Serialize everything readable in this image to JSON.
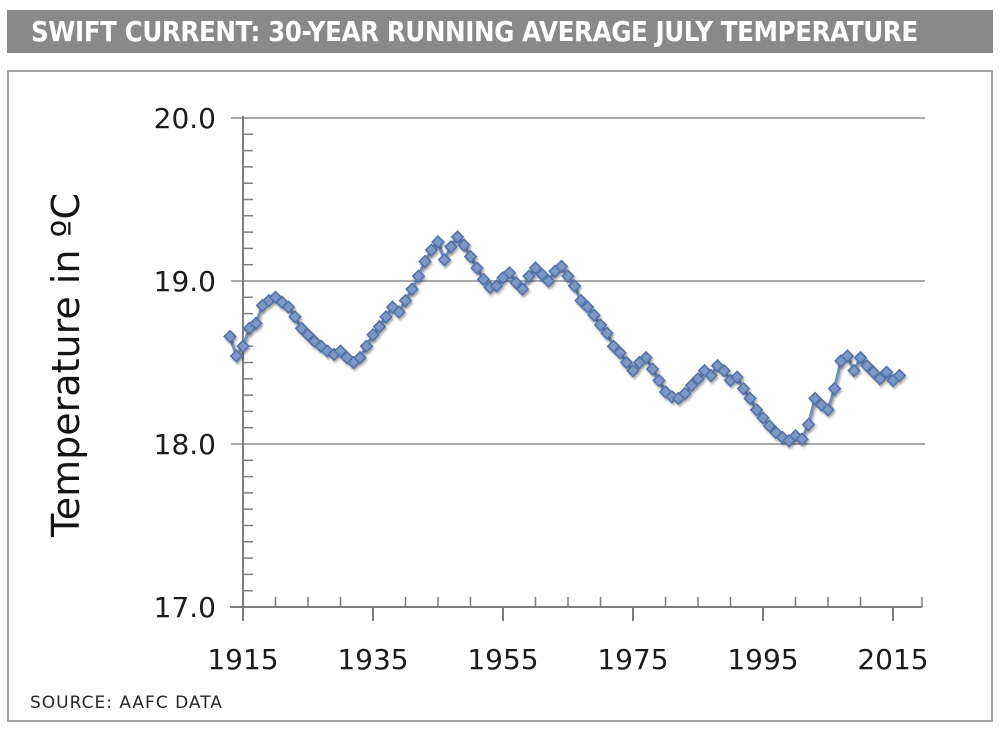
{
  "title_bar": {
    "title": "SWIFT CURRENT: 30-YEAR RUNNING AVERAGE JULY TEMPERATURE"
  },
  "source_label": "SOURCE: AAFC DATA",
  "chart_data": {
    "type": "scatter",
    "title": "SWIFT CURRENT: 30-YEAR RUNNING AVERAGE JULY TEMPERATURE",
    "xlabel": "",
    "ylabel": "Temperature in ºC",
    "ylim": [
      17.0,
      20.0
    ],
    "xlim": [
      1913,
      2020
    ],
    "grid": "horizontal",
    "legend_position": "none",
    "marker": "diamond",
    "y_tick_labels": [
      "20.0",
      "19.0",
      "18.0",
      "17.0"
    ],
    "y_tick_values": [
      20.0,
      19.0,
      18.0,
      17.0
    ],
    "x_tick_labels": [
      "1915",
      "1935",
      "1955",
      "1975",
      "1995",
      "2015"
    ],
    "x_tick_years": [
      1915,
      1935,
      1955,
      1975,
      1995,
      2015
    ],
    "minor_x_tick_step_years": 5,
    "minor_y_tick_step_degrees": 0.1,
    "colors": {
      "marker_fill": "#7e98c5",
      "marker_stroke": "#5372a9",
      "line": "#7590bf",
      "grid": "#8e8e8e",
      "axis": "#7d7d7d",
      "tick_text": "#1b1b1b",
      "title_bar_bg": "#898989",
      "title_text": "#ffffff"
    },
    "series": [
      {
        "name": "30-year running average July temperature (°C)",
        "x": [
          1913,
          1914,
          1915,
          1916,
          1917,
          1918,
          1919,
          1920,
          1921,
          1922,
          1923,
          1924,
          1925,
          1926,
          1927,
          1928,
          1929,
          1930,
          1931,
          1932,
          1933,
          1934,
          1935,
          1936,
          1937,
          1938,
          1939,
          1940,
          1941,
          1942,
          1943,
          1944,
          1945,
          1946,
          1947,
          1948,
          1949,
          1950,
          1951,
          1952,
          1953,
          1954,
          1955,
          1956,
          1957,
          1958,
          1959,
          1960,
          1961,
          1962,
          1963,
          1964,
          1965,
          1966,
          1967,
          1968,
          1969,
          1970,
          1971,
          1972,
          1973,
          1974,
          1975,
          1976,
          1977,
          1978,
          1979,
          1980,
          1981,
          1982,
          1983,
          1984,
          1985,
          1986,
          1987,
          1988,
          1989,
          1990,
          1991,
          1992,
          1993,
          1994,
          1995,
          1996,
          1997,
          1998,
          1999,
          2000,
          2001,
          2002,
          2003,
          2004,
          2005,
          2006,
          2007,
          2008,
          2009,
          2010,
          2011,
          2012,
          2013,
          2014,
          2015,
          2016
        ],
        "values": [
          18.66,
          18.54,
          18.6,
          18.71,
          18.74,
          18.85,
          18.88,
          18.9,
          18.87,
          18.84,
          18.78,
          18.71,
          18.67,
          18.63,
          18.6,
          18.57,
          18.55,
          18.57,
          18.53,
          18.5,
          18.53,
          18.6,
          18.67,
          18.72,
          18.78,
          18.84,
          18.81,
          18.88,
          18.95,
          19.03,
          19.12,
          19.19,
          19.24,
          19.13,
          19.21,
          19.27,
          19.22,
          19.15,
          19.08,
          19.01,
          18.96,
          18.97,
          19.02,
          19.05,
          18.99,
          18.95,
          19.03,
          19.08,
          19.04,
          19.0,
          19.06,
          19.09,
          19.03,
          18.97,
          18.88,
          18.84,
          18.79,
          18.73,
          18.68,
          18.6,
          18.56,
          18.5,
          18.45,
          18.5,
          18.53,
          18.46,
          18.39,
          18.32,
          18.29,
          18.28,
          18.31,
          18.36,
          18.4,
          18.45,
          18.42,
          18.48,
          18.45,
          18.39,
          18.41,
          18.34,
          18.28,
          18.21,
          18.16,
          18.11,
          18.07,
          18.04,
          18.02,
          18.05,
          18.03,
          18.12,
          18.28,
          18.24,
          18.21,
          18.34,
          18.51,
          18.54,
          18.45,
          18.53,
          18.48,
          18.44,
          18.4,
          18.44,
          18.39,
          18.42
        ]
      }
    ]
  }
}
